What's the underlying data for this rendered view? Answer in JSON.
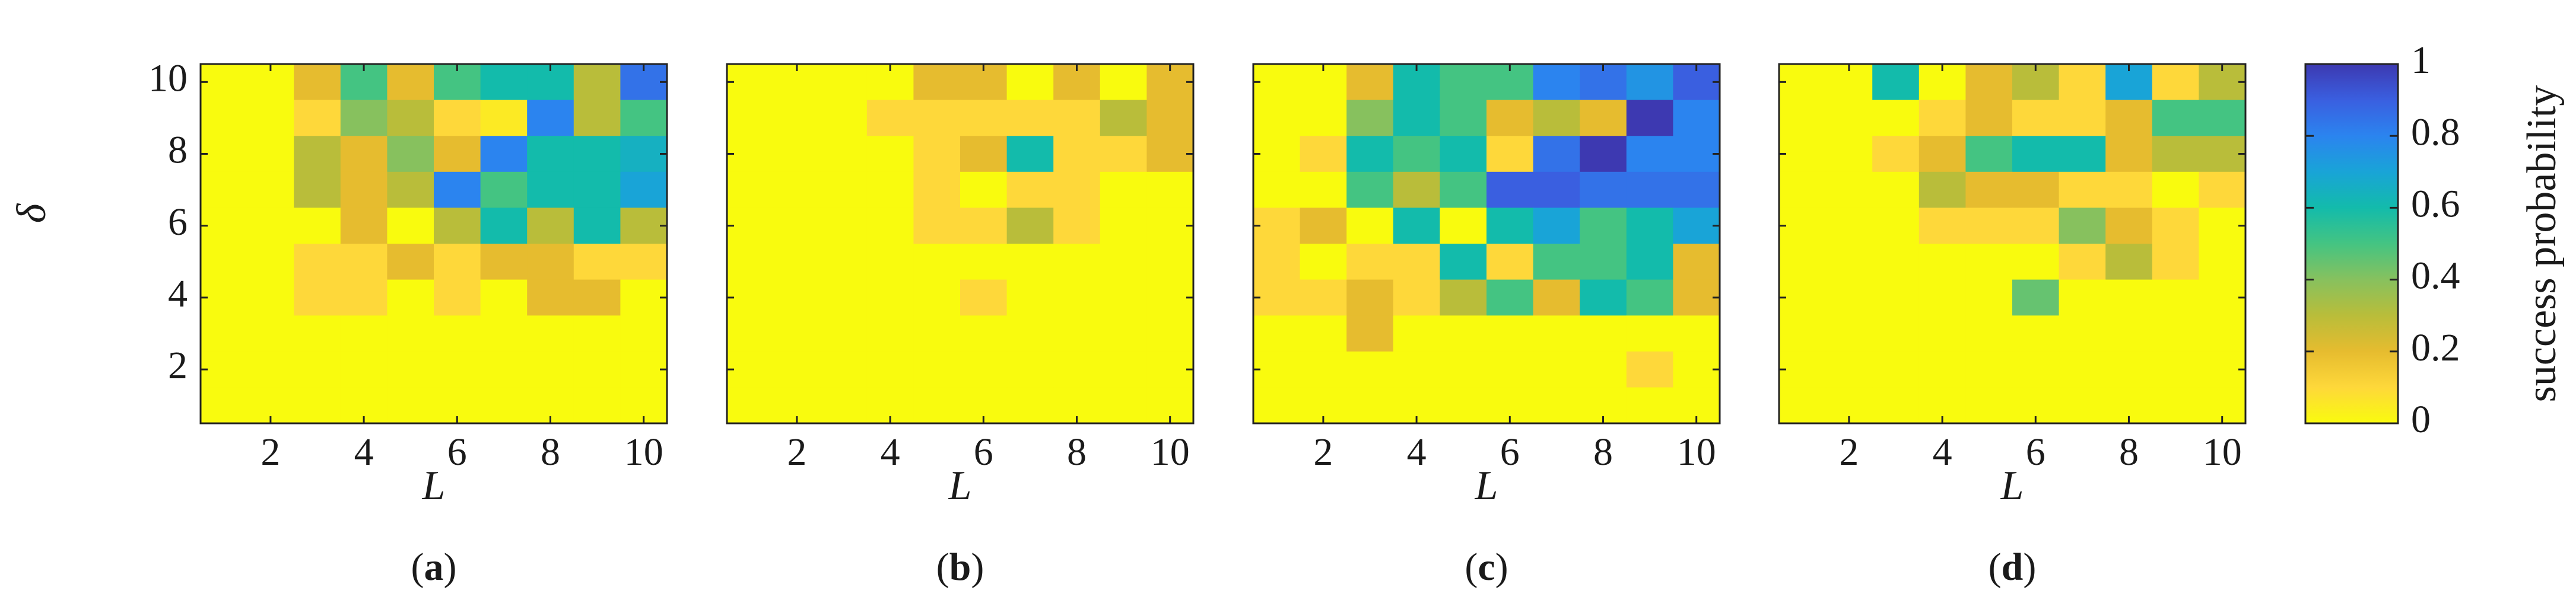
{
  "colors": {
    "scale": [
      "#f9fb0e",
      "#fed83a",
      "#e6bc2f",
      "#b9bd3a",
      "#87c15e",
      "#44c482",
      "#13bbab",
      "#19a4d7",
      "#2b84ef",
      "#3a5fe0",
      "#3d39b1"
    ]
  },
  "chart_data": [
    {
      "type": "heatmap",
      "panel_label": "a",
      "xlabel": "L",
      "ylabel": "δ",
      "x_ticks": [
        "2",
        "4",
        "6",
        "8",
        "10"
      ],
      "y_ticks": [
        "2",
        "4",
        "6",
        "8",
        "10"
      ],
      "x": [
        1,
        2,
        3,
        4,
        5,
        6,
        7,
        8,
        9,
        10
      ],
      "y": [
        1,
        2,
        3,
        4,
        5,
        6,
        7,
        8,
        9,
        10
      ],
      "z_rows_top_to_bottom": [
        [
          0,
          0,
          0.2,
          0.5,
          0.2,
          0.5,
          0.6,
          0.6,
          0.3,
          0.85
        ],
        [
          0,
          0,
          0.1,
          0.4,
          0.3,
          0.1,
          0.05,
          0.8,
          0.3,
          0.5
        ],
        [
          0,
          0,
          0.3,
          0.2,
          0.4,
          0.2,
          0.8,
          0.6,
          0.6,
          0.65
        ],
        [
          0,
          0,
          0.3,
          0.2,
          0.3,
          0.8,
          0.5,
          0.6,
          0.6,
          0.7
        ],
        [
          0,
          0,
          0,
          0.2,
          0,
          0.3,
          0.6,
          0.3,
          0.6,
          0.3
        ],
        [
          0,
          0,
          0.1,
          0.1,
          0.2,
          0.1,
          0.2,
          0.2,
          0.1,
          0.1
        ],
        [
          0,
          0,
          0.1,
          0.1,
          0,
          0.1,
          0,
          0.2,
          0.2,
          0
        ],
        [
          0,
          0,
          0,
          0,
          0,
          0,
          0,
          0,
          0,
          0
        ],
        [
          0,
          0,
          0,
          0,
          0,
          0,
          0,
          0,
          0,
          0
        ],
        [
          0,
          0,
          0,
          0,
          0,
          0,
          0,
          0,
          0,
          0
        ]
      ]
    },
    {
      "type": "heatmap",
      "panel_label": "b",
      "xlabel": "L",
      "ylabel": "",
      "x_ticks": [
        "2",
        "4",
        "6",
        "8",
        "10"
      ],
      "y_ticks": [],
      "x": [
        1,
        2,
        3,
        4,
        5,
        6,
        7,
        8,
        9,
        10
      ],
      "y": [
        1,
        2,
        3,
        4,
        5,
        6,
        7,
        8,
        9,
        10
      ],
      "z_rows_top_to_bottom": [
        [
          0,
          0,
          0,
          0,
          0.2,
          0.2,
          0,
          0.2,
          0,
          0.2
        ],
        [
          0,
          0,
          0,
          0.1,
          0.1,
          0.1,
          0.1,
          0.1,
          0.3,
          0.2
        ],
        [
          0,
          0,
          0,
          0,
          0.1,
          0.2,
          0.6,
          0.1,
          0.1,
          0.2
        ],
        [
          0,
          0,
          0,
          0,
          0.1,
          0,
          0.1,
          0.1,
          0,
          0
        ],
        [
          0,
          0,
          0,
          0,
          0.1,
          0.1,
          0.3,
          0.1,
          0,
          0
        ],
        [
          0,
          0,
          0,
          0,
          0,
          0,
          0,
          0,
          0,
          0
        ],
        [
          0,
          0,
          0,
          0,
          0,
          0.1,
          0,
          0,
          0,
          0
        ],
        [
          0,
          0,
          0,
          0,
          0,
          0,
          0,
          0,
          0,
          0
        ],
        [
          0,
          0,
          0,
          0,
          0,
          0,
          0,
          0,
          0,
          0
        ],
        [
          0,
          0,
          0,
          0,
          0,
          0,
          0,
          0,
          0,
          0
        ]
      ]
    },
    {
      "type": "heatmap",
      "panel_label": "c",
      "xlabel": "L",
      "ylabel": "",
      "x_ticks": [
        "2",
        "4",
        "6",
        "8",
        "10"
      ],
      "y_ticks": [],
      "x": [
        1,
        2,
        3,
        4,
        5,
        6,
        7,
        8,
        9,
        10
      ],
      "y": [
        1,
        2,
        3,
        4,
        5,
        6,
        7,
        8,
        9,
        10
      ],
      "z_rows_top_to_bottom": [
        [
          0,
          0,
          0.2,
          0.6,
          0.5,
          0.5,
          0.8,
          0.85,
          0.75,
          0.9
        ],
        [
          0,
          0,
          0.4,
          0.6,
          0.5,
          0.2,
          0.3,
          0.2,
          1.0,
          0.8
        ],
        [
          0,
          0.1,
          0.6,
          0.5,
          0.6,
          0.1,
          0.85,
          1.0,
          0.8,
          0.8
        ],
        [
          0,
          0,
          0.5,
          0.3,
          0.5,
          0.9,
          0.9,
          0.85,
          0.85,
          0.85
        ],
        [
          0.1,
          0.2,
          0,
          0.6,
          0,
          0.6,
          0.7,
          0.5,
          0.6,
          0.7
        ],
        [
          0.1,
          0,
          0.1,
          0.1,
          0.6,
          0.1,
          0.5,
          0.5,
          0.6,
          0.2
        ],
        [
          0.1,
          0.1,
          0.2,
          0.1,
          0.3,
          0.5,
          0.2,
          0.6,
          0.5,
          0.2
        ],
        [
          0,
          0,
          0.2,
          0,
          0,
          0,
          0,
          0,
          0,
          0
        ],
        [
          0,
          0,
          0,
          0,
          0,
          0,
          0,
          0,
          0.1,
          0
        ],
        [
          0,
          0,
          0,
          0,
          0,
          0,
          0,
          0,
          0,
          0
        ]
      ]
    },
    {
      "type": "heatmap",
      "panel_label": "d",
      "xlabel": "L",
      "ylabel": "",
      "x_ticks": [
        "2",
        "4",
        "6",
        "8",
        "10"
      ],
      "y_ticks": [],
      "x": [
        1,
        2,
        3,
        4,
        5,
        6,
        7,
        8,
        9,
        10
      ],
      "y": [
        1,
        2,
        3,
        4,
        5,
        6,
        7,
        8,
        9,
        10
      ],
      "z_rows_top_to_bottom": [
        [
          0,
          0,
          0.6,
          0,
          0.2,
          0.3,
          0.1,
          0.7,
          0.1,
          0.3
        ],
        [
          0,
          0,
          0,
          0.1,
          0.2,
          0.1,
          0.1,
          0.2,
          0.5,
          0.5
        ],
        [
          0,
          0,
          0.1,
          0.2,
          0.5,
          0.6,
          0.6,
          0.2,
          0.3,
          0.3
        ],
        [
          0,
          0,
          0,
          0.3,
          0.2,
          0.2,
          0.1,
          0.1,
          0,
          0.1
        ],
        [
          0,
          0,
          0,
          0.1,
          0.1,
          0.1,
          0.4,
          0.2,
          0.1,
          0
        ],
        [
          0,
          0,
          0,
          0,
          0,
          0,
          0.1,
          0.3,
          0.1,
          0
        ],
        [
          0,
          0,
          0,
          0,
          0,
          0.45,
          0,
          0,
          0,
          0
        ],
        [
          0,
          0,
          0,
          0,
          0,
          0,
          0,
          0,
          0,
          0
        ],
        [
          0,
          0,
          0,
          0,
          0,
          0,
          0,
          0,
          0,
          0
        ],
        [
          0,
          0,
          0,
          0,
          0,
          0,
          0,
          0,
          0,
          0
        ]
      ]
    }
  ],
  "colorbar": {
    "label": "success probability",
    "ticks": [
      "0",
      "0.2",
      "0.4",
      "0.6",
      "0.8",
      "1"
    ],
    "range": [
      0,
      1
    ]
  }
}
